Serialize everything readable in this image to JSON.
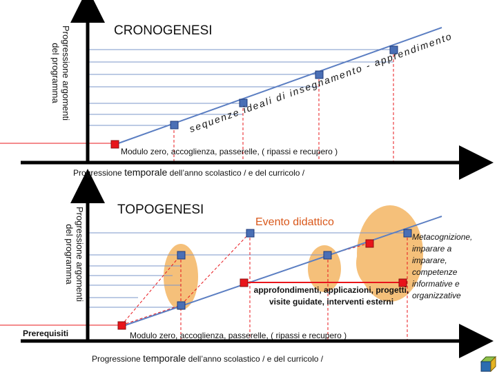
{
  "top": {
    "title": "CRONOGENESI",
    "y_axis_label_line1": "Progressione argomenti",
    "y_axis_label_line2": "del programma",
    "diagonal_label": "sequenze ideali di insegnamento - apprendimento",
    "caption": "Modulo zero, accoglienza,  passerelle, ( ripassi e recupero )",
    "x_axis_label_a": "Progressione",
    "x_axis_label_b": "temporale",
    "x_axis_label_c": "dell’anno scolastico /  e del curricolo /"
  },
  "bottom": {
    "title": "TOPOGENESI",
    "y_axis_label_line1": "Progressione argomenti",
    "y_axis_label_line2": "del programma",
    "event_label": "Evento didattico",
    "prereq_label": "Prerequisiti",
    "approfondimenti_label": "approfondimenti, applicazioni, progetti, visite guidate, interventi esterni",
    "metacognition_label": "Metacognizione, imparare a imparare, competenze informative e organizzative",
    "caption": "Modulo zero, accoglienza,  passerelle, ( ripassi e recupero )",
    "x_axis_label_a": "Progressione",
    "x_axis_label_b": "temporale",
    "x_axis_label_c": "dell’anno scolastico /  e del curricolo /"
  },
  "colors": {
    "axis": "#000000",
    "line_blue": "#5b7ec2",
    "marker_fill": "#4a6fb5",
    "marker_red": "#e8141a",
    "blob": "#f5c07a",
    "accent_title": "#d9581b"
  },
  "icons": {
    "corner": "cube-icon"
  }
}
